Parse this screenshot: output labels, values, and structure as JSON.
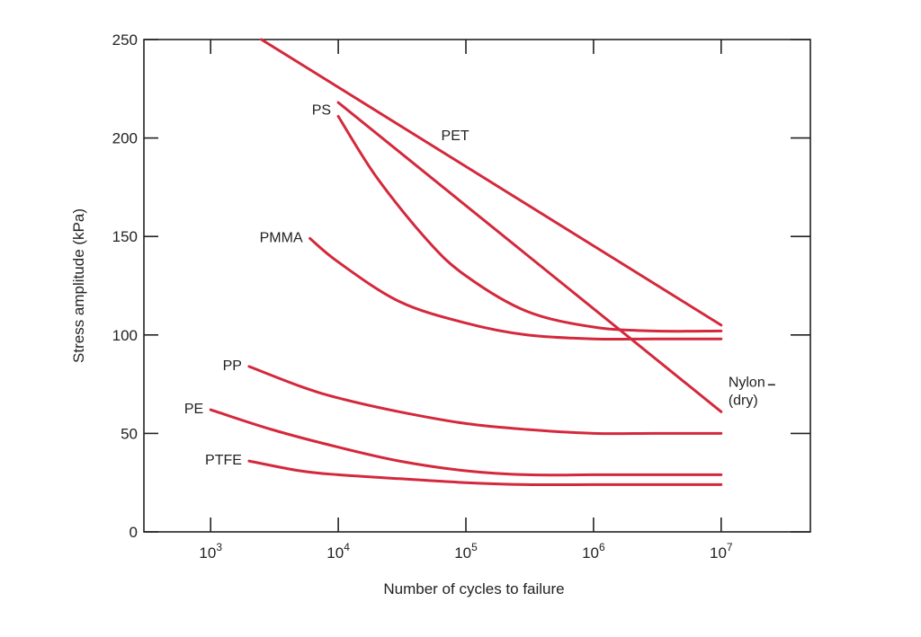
{
  "chart_data": {
    "type": "line",
    "xlabel": "Number of cycles to failure",
    "ylabel": "Stress amplitude (kPa)",
    "x_scale": "log",
    "xlim": [
      300,
      50000000
    ],
    "ylim": [
      0,
      250
    ],
    "x_ticks": [
      {
        "value": 1000,
        "base": "10",
        "exp": "3"
      },
      {
        "value": 10000,
        "base": "10",
        "exp": "4"
      },
      {
        "value": 100000,
        "base": "10",
        "exp": "5"
      },
      {
        "value": 1000000,
        "base": "10",
        "exp": "6"
      },
      {
        "value": 10000000,
        "base": "10",
        "exp": "7"
      }
    ],
    "y_ticks": [
      0,
      50,
      100,
      150,
      200,
      250
    ],
    "grid": false,
    "line_color": "#d4283c",
    "series": [
      {
        "name": "PET",
        "label": "PET",
        "x": [
          2500,
          10000000
        ],
        "y": [
          250,
          105
        ]
      },
      {
        "name": "Nylon (dry)",
        "label_lines": [
          "Nylon",
          "(dry)"
        ],
        "x": [
          10000,
          10000000
        ],
        "y": [
          218,
          61
        ]
      },
      {
        "name": "PS",
        "label": "PS",
        "x": [
          10000,
          20000,
          50000,
          100000,
          300000,
          1000000,
          3000000,
          10000000
        ],
        "y": [
          211,
          180,
          148,
          130,
          112,
          104,
          102,
          102
        ]
      },
      {
        "name": "PMMA",
        "label": "PMMA",
        "x": [
          6000,
          10000,
          30000,
          100000,
          300000,
          1000000,
          3000000,
          10000000
        ],
        "y": [
          149,
          137,
          117,
          106,
          100,
          98,
          98,
          98
        ]
      },
      {
        "name": "PP",
        "label": "PP",
        "x": [
          2000,
          5000,
          10000,
          30000,
          100000,
          300000,
          1000000,
          3000000,
          10000000
        ],
        "y": [
          84,
          74,
          68,
          61,
          55,
          52,
          50,
          50,
          50
        ]
      },
      {
        "name": "PE",
        "label": "PE",
        "x": [
          1000,
          3000,
          10000,
          30000,
          100000,
          300000,
          1000000,
          3000000,
          10000000
        ],
        "y": [
          62,
          52,
          43,
          36,
          31,
          29,
          29,
          29,
          29
        ]
      },
      {
        "name": "PTFE",
        "label": "PTFE",
        "x": [
          2000,
          5000,
          10000,
          30000,
          100000,
          300000,
          1000000,
          3000000,
          10000000
        ],
        "y": [
          36,
          31,
          29,
          27,
          25,
          24,
          24,
          24,
          24
        ]
      }
    ]
  }
}
